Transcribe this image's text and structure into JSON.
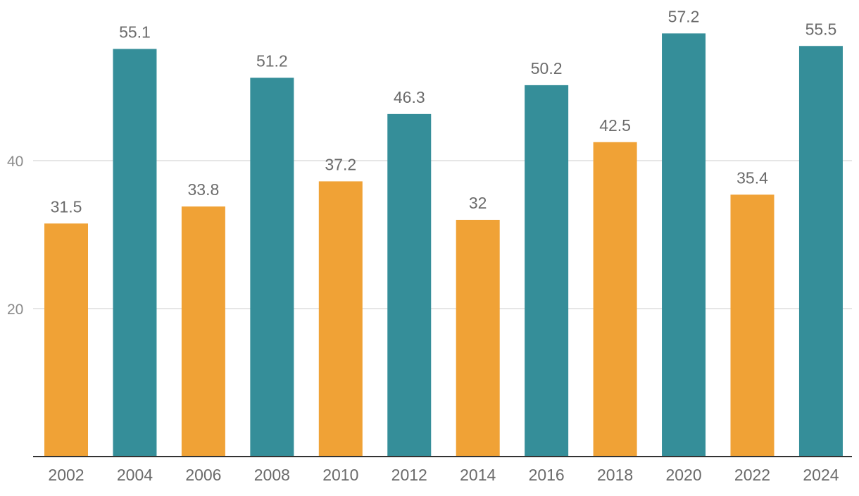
{
  "chart_data": {
    "type": "bar",
    "title": "",
    "xlabel": "",
    "ylabel": "",
    "ylim": [
      0,
      60
    ],
    "yticks": [
      20,
      40
    ],
    "grid": true,
    "categories": [
      "2002",
      "2004",
      "2006",
      "2008",
      "2010",
      "2012",
      "2014",
      "2016",
      "2018",
      "2020",
      "2022",
      "2024"
    ],
    "values": [
      31.5,
      55.1,
      33.8,
      51.2,
      37.2,
      46.3,
      32,
      50.2,
      42.5,
      57.2,
      35.4,
      55.5
    ],
    "value_labels": [
      "31.5",
      "55.1",
      "33.8",
      "51.2",
      "37.2",
      "46.3",
      "32",
      "50.2",
      "42.5",
      "57.2",
      "35.4",
      "55.5"
    ],
    "colors": {
      "orange": "#f0a236",
      "teal": "#358e99"
    },
    "bar_colors": [
      "#f0a236",
      "#358e99",
      "#f0a236",
      "#358e99",
      "#f0a236",
      "#358e99",
      "#f0a236",
      "#358e99",
      "#f0a236",
      "#358e99",
      "#f0a236",
      "#358e99"
    ]
  }
}
